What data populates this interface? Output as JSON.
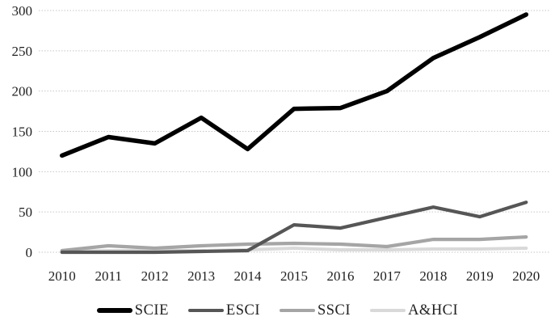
{
  "chart_data": {
    "type": "line",
    "title": "",
    "xlabel": "",
    "ylabel": "",
    "x": [
      2010,
      2011,
      2012,
      2013,
      2014,
      2015,
      2016,
      2017,
      2018,
      2019,
      2020
    ],
    "series": [
      {
        "name": "SCIE",
        "color": "#000000",
        "line_width": 5.5,
        "values": [
          120,
          143,
          135,
          167,
          128,
          178,
          179,
          200,
          241,
          267,
          295
        ]
      },
      {
        "name": "ESCI",
        "color": "#565656",
        "line_width": 4.2,
        "values": [
          0,
          0,
          0,
          1,
          2,
          34,
          30,
          43,
          56,
          44,
          62
        ]
      },
      {
        "name": "SSCI",
        "color": "#a5a5a5",
        "line_width": 4.2,
        "values": [
          2,
          8,
          5,
          8,
          10,
          11,
          10,
          7,
          16,
          16,
          19
        ]
      },
      {
        "name": "A&HCI",
        "color": "#d9d9d9",
        "line_width": 4.0,
        "values": [
          1,
          2,
          2,
          2,
          3,
          5,
          3,
          3,
          4,
          4,
          5
        ]
      }
    ],
    "ylim": [
      0,
      300
    ],
    "yticks": [
      0,
      50,
      100,
      150,
      200,
      250,
      300
    ],
    "grid": true,
    "gridline_color": "#c6c6c6",
    "tick_text_color": "#1f1f1f",
    "legend_position": "bottom"
  }
}
